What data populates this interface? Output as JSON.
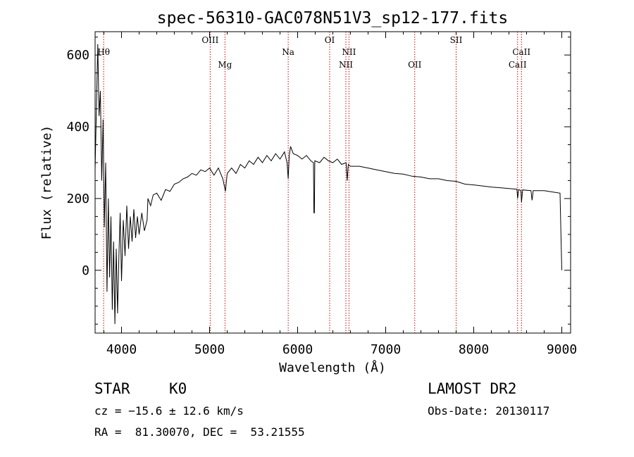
{
  "chart_data": {
    "type": "line",
    "title": "spec-56310-GAC078N51V3_sp12-177.fits",
    "xlabel": "Wavelength (Å)",
    "ylabel": "Flux (relative)",
    "xlim": [
      3700,
      9100
    ],
    "ylim": [
      -175,
      665
    ],
    "x_ticks": [
      4000,
      5000,
      6000,
      7000,
      8000,
      9000
    ],
    "y_ticks": [
      0,
      200,
      400,
      600
    ],
    "grid": false,
    "series": [
      {
        "color": "#000000",
        "points": [
          [
            3700,
            280
          ],
          [
            3730,
            630
          ],
          [
            3745,
            430
          ],
          [
            3760,
            500
          ],
          [
            3775,
            250
          ],
          [
            3790,
            420
          ],
          [
            3805,
            120
          ],
          [
            3820,
            300
          ],
          [
            3835,
            -60
          ],
          [
            3850,
            200
          ],
          [
            3865,
            -20
          ],
          [
            3880,
            150
          ],
          [
            3895,
            -110
          ],
          [
            3910,
            80
          ],
          [
            3925,
            -150
          ],
          [
            3940,
            60
          ],
          [
            3955,
            -120
          ],
          [
            3970,
            40
          ],
          [
            3985,
            160
          ],
          [
            4000,
            -30
          ],
          [
            4020,
            140
          ],
          [
            4040,
            40
          ],
          [
            4060,
            180
          ],
          [
            4080,
            60
          ],
          [
            4100,
            150
          ],
          [
            4120,
            80
          ],
          [
            4140,
            170
          ],
          [
            4160,
            90
          ],
          [
            4180,
            150
          ],
          [
            4200,
            100
          ],
          [
            4230,
            160
          ],
          [
            4260,
            110
          ],
          [
            4290,
            140
          ],
          [
            4300,
            200
          ],
          [
            4330,
            180
          ],
          [
            4360,
            210
          ],
          [
            4400,
            215
          ],
          [
            4450,
            195
          ],
          [
            4500,
            225
          ],
          [
            4550,
            220
          ],
          [
            4600,
            240
          ],
          [
            4650,
            245
          ],
          [
            4700,
            255
          ],
          [
            4750,
            260
          ],
          [
            4800,
            270
          ],
          [
            4850,
            265
          ],
          [
            4900,
            280
          ],
          [
            4950,
            275
          ],
          [
            5000,
            285
          ],
          [
            5050,
            265
          ],
          [
            5100,
            285
          ],
          [
            5150,
            255
          ],
          [
            5180,
            220
          ],
          [
            5200,
            270
          ],
          [
            5250,
            285
          ],
          [
            5300,
            270
          ],
          [
            5350,
            295
          ],
          [
            5400,
            285
          ],
          [
            5450,
            305
          ],
          [
            5500,
            295
          ],
          [
            5550,
            315
          ],
          [
            5600,
            300
          ],
          [
            5650,
            320
          ],
          [
            5700,
            305
          ],
          [
            5750,
            325
          ],
          [
            5800,
            310
          ],
          [
            5850,
            330
          ],
          [
            5880,
            300
          ],
          [
            5893,
            255
          ],
          [
            5905,
            320
          ],
          [
            5920,
            345
          ],
          [
            5950,
            325
          ],
          [
            6000,
            320
          ],
          [
            6050,
            310
          ],
          [
            6100,
            320
          ],
          [
            6150,
            305
          ],
          [
            6180,
            300
          ],
          [
            6185,
            160
          ],
          [
            6190,
            160
          ],
          [
            6195,
            305
          ],
          [
            6250,
            300
          ],
          [
            6300,
            315
          ],
          [
            6350,
            305
          ],
          [
            6400,
            300
          ],
          [
            6450,
            310
          ],
          [
            6500,
            295
          ],
          [
            6550,
            300
          ],
          [
            6563,
            250
          ],
          [
            6575,
            295
          ],
          [
            6600,
            290
          ],
          [
            6700,
            290
          ],
          [
            6800,
            285
          ],
          [
            6900,
            280
          ],
          [
            7000,
            275
          ],
          [
            7100,
            270
          ],
          [
            7200,
            268
          ],
          [
            7300,
            262
          ],
          [
            7400,
            260
          ],
          [
            7500,
            255
          ],
          [
            7600,
            255
          ],
          [
            7700,
            250
          ],
          [
            7800,
            248
          ],
          [
            7900,
            240
          ],
          [
            8000,
            238
          ],
          [
            8100,
            235
          ],
          [
            8200,
            232
          ],
          [
            8300,
            230
          ],
          [
            8400,
            228
          ],
          [
            8490,
            226
          ],
          [
            8498,
            200
          ],
          [
            8510,
            225
          ],
          [
            8535,
            222
          ],
          [
            8542,
            190
          ],
          [
            8555,
            224
          ],
          [
            8650,
            222
          ],
          [
            8662,
            195
          ],
          [
            8675,
            222
          ],
          [
            8800,
            222
          ],
          [
            8900,
            218
          ],
          [
            8980,
            215
          ],
          [
            8990,
            100
          ],
          [
            9000,
            0
          ]
        ]
      }
    ],
    "line_markers": [
      {
        "label": "Hθ",
        "x": 3797,
        "row": 1
      },
      {
        "label": "OIII",
        "x": 5007,
        "row": 0
      },
      {
        "label": "Mg",
        "x": 5175,
        "row": 2
      },
      {
        "label": "Na",
        "x": 5893,
        "row": 1
      },
      {
        "label": "OI",
        "x": 6364,
        "row": 0
      },
      {
        "label": "NII",
        "x": 6548,
        "row": 2
      },
      {
        "label": "NII",
        "x": 6583,
        "row": 1
      },
      {
        "label": "OII",
        "x": 7330,
        "row": 2
      },
      {
        "label": "SII",
        "x": 7800,
        "row": 0
      },
      {
        "label": "CaII",
        "x": 8498,
        "row": 2
      },
      {
        "label": "CaII",
        "x": 8542,
        "row": 1
      }
    ],
    "marker_color": "#cc0000"
  },
  "info": {
    "class_label": "STAR",
    "subclass": "K0",
    "cz": "cz = −15.6 ± 12.6 km/s",
    "coords": "RA =  81.30070, DEC =  53.21555",
    "survey": "LAMOST DR2",
    "obs_date": "Obs-Date: 20130117"
  }
}
